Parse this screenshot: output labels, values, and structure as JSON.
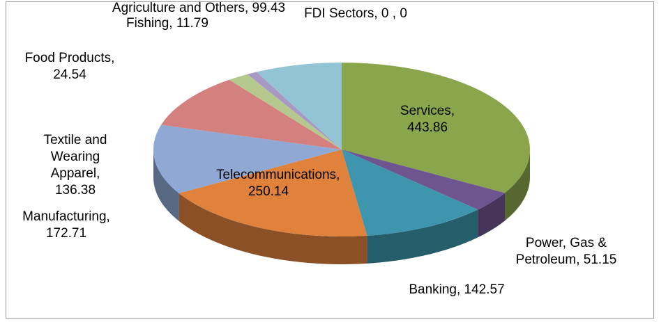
{
  "chart_data": {
    "type": "pie3d",
    "categories": [
      "Services",
      "Power, Gas & Petroleum",
      "Banking",
      "Telecommunications",
      "Manufacturing",
      "Textile and Wearing Apparel",
      "Food Products",
      "Fishing",
      "Agriculture and Others",
      "FDI Sectors"
    ],
    "values": [
      443.86,
      51.15,
      142.57,
      250.14,
      172.71,
      136.38,
      24.54,
      11.79,
      99.43,
      0
    ],
    "value_labels": [
      "Services, 443.86",
      "Power, Gas & Petroleum, 51.15",
      "Banking, 142.57",
      "Telecommunications, 250.14",
      "Manufacturing, 172.71",
      "Textile and Wearing Apparel, 136.38",
      "Food Products, 24.54",
      "Fishing, 11.79",
      "Agriculture and Others, 99.43",
      "FDI Sectors, 0 , 0"
    ],
    "colors": [
      "#8aa64c",
      "#6e558f",
      "#3d96ad",
      "#e0813c",
      "#8fa8d4",
      "#d4807e",
      "#b5c98f",
      "#a899c4",
      "#93c4d6",
      "#4f81bd"
    ]
  }
}
